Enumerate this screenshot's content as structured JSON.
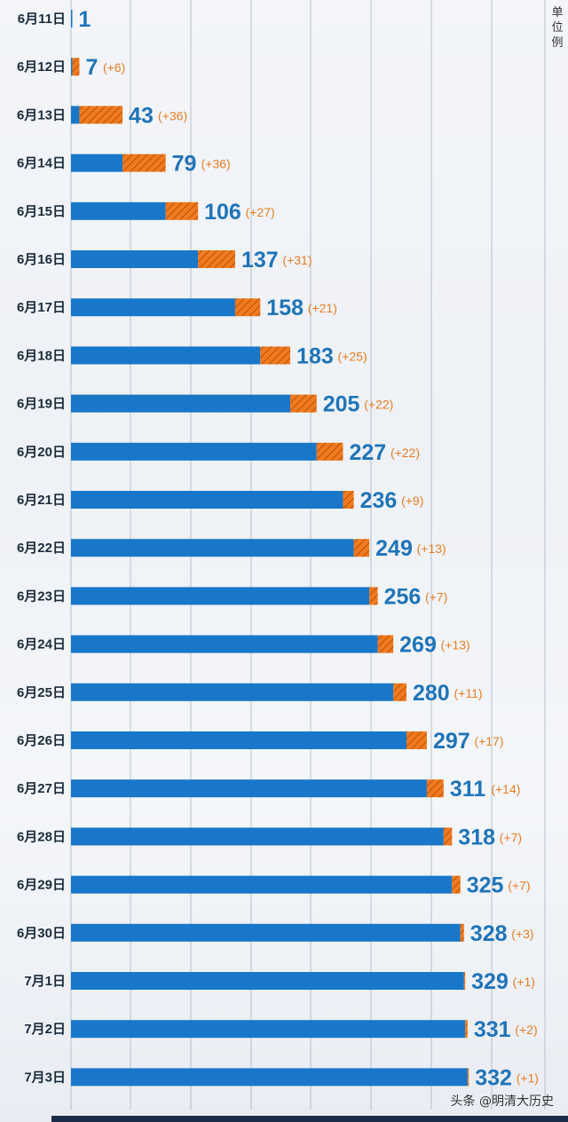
{
  "chart_data": {
    "type": "bar",
    "orientation": "horizontal",
    "stacked": true,
    "unit": "单位例",
    "categories": [
      "6月11日",
      "6月12日",
      "6月13日",
      "6月14日",
      "6月15日",
      "6月16日",
      "6月17日",
      "6月18日",
      "6月19日",
      "6月20日",
      "6月21日",
      "6月22日",
      "6月23日",
      "6月24日",
      "6月25日",
      "6月26日",
      "6月27日",
      "6月28日",
      "6月29日",
      "6月30日",
      "7月1日",
      "7月2日",
      "7月3日"
    ],
    "totals": [
      1,
      7,
      43,
      79,
      106,
      137,
      158,
      183,
      205,
      227,
      236,
      249,
      256,
      269,
      280,
      297,
      311,
      318,
      325,
      328,
      329,
      331,
      332
    ],
    "deltas": [
      null,
      6,
      36,
      36,
      27,
      31,
      21,
      25,
      22,
      22,
      9,
      13,
      7,
      13,
      11,
      17,
      14,
      7,
      7,
      3,
      1,
      2,
      1
    ],
    "total_labels": [
      "1",
      "7",
      "43",
      "79",
      "106",
      "137",
      "158",
      "183",
      "205",
      "227",
      "236",
      "249",
      "256",
      "269",
      "280",
      "297",
      "311",
      "318",
      "325",
      "328",
      "329",
      "331",
      "332"
    ],
    "delta_labels": [
      "",
      "(+6)",
      "(+36)",
      "(+36)",
      "(+27)",
      "(+31)",
      "(+21)",
      "(+25)",
      "(+22)",
      "(+22)",
      "(+9)",
      "(+13)",
      "(+7)",
      "(+13)",
      "(+11)",
      "(+17)",
      "(+14)",
      "(+7)",
      "(+7)",
      "(+3)",
      "(+1)",
      "(+2)",
      "(+1)"
    ],
    "series": [
      {
        "values": [
          1,
          1,
          7,
          43,
          79,
          106,
          137,
          158,
          183,
          205,
          227,
          236,
          249,
          256,
          269,
          280,
          297,
          311,
          318,
          325,
          328,
          329,
          331
        ]
      },
      {
        "values": [
          0,
          6,
          36,
          36,
          27,
          31,
          21,
          25,
          22,
          22,
          9,
          13,
          7,
          13,
          11,
          17,
          14,
          7,
          7,
          3,
          1,
          2,
          1
        ]
      }
    ],
    "xlim": [
      0,
      350
    ],
    "grid": true,
    "legend": "none"
  },
  "colors": {
    "base_bar": "#1877c9",
    "increment_bar": "#f07b1e",
    "increment_hatch": "#b84f06",
    "total_text": "#1f74b8",
    "delta_text": "#e87d22",
    "gridline": "#8d96a3"
  },
  "unit_text": "单位例",
  "watermark": "头条 @明清大历史"
}
